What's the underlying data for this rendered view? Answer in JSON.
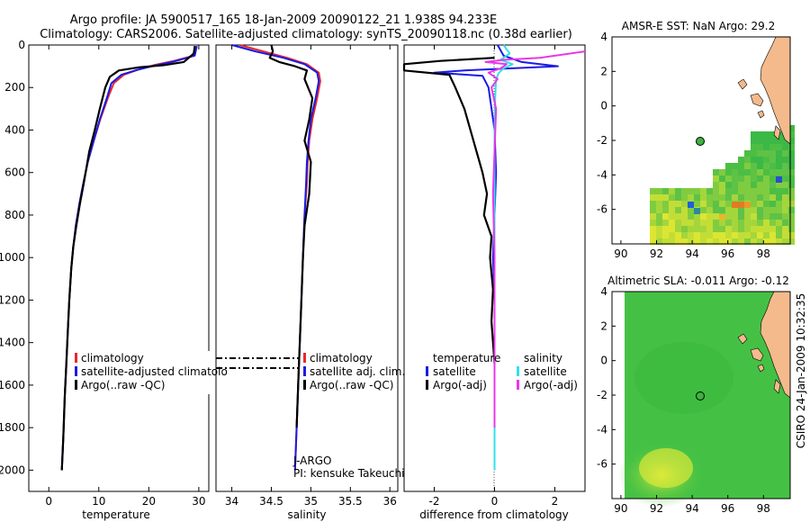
{
  "title_line1": "Argo profile: JA 5900517_165 18-Jan-2009 20090122_21 1.938S 94.233E",
  "title_line2": "Climatology: CARS2006. Satellite-adjusted climatology: synTS_20090118.nc (0.38d earlier)",
  "credit": "CSIRO 24-Jan-2009 10:32:35",
  "colors": {
    "red": "#e8292c",
    "blue": "#1a1ae6",
    "black": "#000000",
    "cyan": "#33e0e8",
    "magenta": "#e838e8",
    "land": "#f4ba8c",
    "ocean_map": "#44c144"
  },
  "chart_data": [
    {
      "type": "line",
      "xlabel": "temperature",
      "ylabel": "",
      "xlim": [
        -4,
        32
      ],
      "ylim": [
        2100,
        0
      ],
      "xticks": [
        "0",
        "10",
        "20",
        "30"
      ],
      "yticks": [
        "0",
        "200",
        "400",
        "600",
        "800",
        "1000",
        "1200",
        "1400",
        "1600",
        "1800",
        "2000"
      ],
      "legend": [
        "climatology",
        "satellite-adjusted climatolo",
        "Argo(..raw -QC)"
      ],
      "series": [
        {
          "name": "climatology",
          "color": "red",
          "x": [
            29.3,
            29.0,
            25,
            21,
            18,
            15,
            13,
            11.8,
            10.3,
            9.0,
            7.8,
            6.9,
            6.1,
            5.4,
            4.9,
            4.5,
            4.1,
            3.8,
            3.5,
            3.2,
            2.9,
            2.6
          ],
          "y": [
            5,
            50,
            75,
            95,
            115,
            140,
            180,
            250,
            350,
            450,
            550,
            650,
            750,
            850,
            950,
            1050,
            1200,
            1350,
            1500,
            1650,
            1850,
            2000
          ]
        },
        {
          "name": "satellite-adjusted climatology",
          "color": "blue",
          "x": [
            29.6,
            29.2,
            25,
            21,
            17.5,
            14.5,
            12.5,
            11.6,
            10.2,
            9.0,
            7.8,
            6.9,
            6.1,
            5.4,
            4.9,
            4.5,
            4.1,
            3.8,
            3.5,
            3.2,
            2.9,
            2.6
          ],
          "y": [
            5,
            50,
            78,
            98,
            118,
            140,
            180,
            250,
            350,
            450,
            550,
            650,
            750,
            850,
            950,
            1050,
            1200,
            1350,
            1500,
            1650,
            1850,
            2000
          ]
        },
        {
          "name": "Argo(..raw -QC)",
          "color": "black",
          "x": [
            29.2,
            29.0,
            27,
            23,
            18,
            14,
            12.2,
            11.3,
            10.2,
            9.2,
            8.1,
            7.0,
            6.2,
            5.5,
            4.9,
            4.5,
            4.1,
            3.8,
            3.5,
            3.2,
            2.9,
            2.6
          ],
          "y": [
            5,
            40,
            80,
            95,
            105,
            120,
            150,
            200,
            300,
            400,
            500,
            650,
            750,
            850,
            950,
            1050,
            1200,
            1350,
            1500,
            1650,
            1850,
            2000
          ]
        }
      ]
    },
    {
      "type": "line",
      "xlabel": "salinity",
      "ylabel": "",
      "xlim": [
        33.8,
        36.1
      ],
      "ylim": [
        2100,
        0
      ],
      "xticks": [
        "34",
        "34.5",
        "35",
        "35.5",
        "36"
      ],
      "legend": [
        "climatology",
        "satellite adj. clim.",
        "Argo(..raw -QC)"
      ],
      "annotations": [
        "J-ARGO",
        "PI: kensuke Takeuchi"
      ],
      "series": [
        {
          "name": "climatology",
          "color": "red",
          "x": [
            34.1,
            34.4,
            34.7,
            34.95,
            35.1,
            35.12,
            35.08,
            35.02,
            34.98,
            34.96,
            34.95,
            34.92,
            34.9,
            34.88,
            34.86,
            34.84,
            34.82,
            34.8
          ],
          "y": [
            0,
            30,
            60,
            90,
            130,
            170,
            250,
            350,
            450,
            550,
            650,
            800,
            1000,
            1200,
            1400,
            1600,
            1800,
            2000
          ]
        },
        {
          "name": "satellite adj. clim.",
          "color": "blue",
          "x": [
            34.0,
            34.3,
            34.65,
            34.92,
            35.08,
            35.1,
            35.06,
            35.0,
            34.97,
            34.95,
            34.94,
            34.92,
            34.9,
            34.88,
            34.86,
            34.84,
            34.82,
            34.8
          ],
          "y": [
            0,
            30,
            60,
            90,
            130,
            170,
            250,
            350,
            450,
            550,
            650,
            800,
            1000,
            1200,
            1400,
            1600,
            1800,
            2000
          ]
        },
        {
          "name": "Argo(..raw -QC)",
          "color": "black",
          "x": [
            34.5,
            34.52,
            34.48,
            34.6,
            34.8,
            34.95,
            34.92,
            35.02,
            34.98,
            34.92,
            35.0,
            34.98,
            34.92,
            34.9,
            34.88,
            34.86,
            34.84,
            34.82
          ],
          "y": [
            0,
            30,
            60,
            80,
            100,
            120,
            160,
            250,
            350,
            450,
            550,
            700,
            850,
            1000,
            1200,
            1400,
            1600,
            1800
          ]
        }
      ]
    },
    {
      "type": "line",
      "xlabel": "difference from climatology",
      "ylabel": "",
      "xlim": [
        -3,
        3
      ],
      "ylim": [
        2100,
        0
      ],
      "xticks": [
        "-2",
        "0",
        "2"
      ],
      "legend_left_title": "temperature",
      "legend_right_title": "salinity",
      "legend": [
        "satellite",
        "Argo(-adj)",
        "satellite",
        "Argo(-adj)"
      ],
      "series": [
        {
          "name": "temperature satellite",
          "color": "blue",
          "x": [
            0.1,
            0.3,
            0.9,
            2.1,
            0.5,
            -1.0,
            -2.0,
            -0.4,
            -0.2,
            0.0,
            0.05,
            0.0,
            -0.05,
            0.0,
            0.0,
            0.0,
            0.0
          ],
          "y": [
            0,
            50,
            80,
            100,
            110,
            120,
            130,
            145,
            200,
            400,
            600,
            800,
            1000,
            1200,
            1500,
            1800,
            2000
          ]
        },
        {
          "name": "temperature Argo(-adj)",
          "color": "black",
          "x": [
            0.0,
            -1.8,
            -3.0,
            -3.0,
            -1.5,
            -1.3,
            -1.0,
            -0.8,
            -0.6,
            -0.4,
            -0.25,
            -0.35,
            -0.1,
            -0.15,
            -0.05,
            -0.1,
            0.0
          ],
          "y": [
            60,
            75,
            90,
            120,
            140,
            200,
            300,
            400,
            500,
            600,
            700,
            800,
            900,
            1000,
            1150,
            1300,
            1500
          ]
        },
        {
          "name": "salinity satellite",
          "color": "cyan",
          "x": [
            0.3,
            0.5,
            0.2,
            0.6,
            0.3,
            0.15,
            0.05,
            0.02,
            0.0,
            0.0,
            0.0,
            0.0,
            0.0,
            0.0,
            0.0
          ],
          "y": [
            0,
            40,
            70,
            90,
            110,
            130,
            160,
            250,
            400,
            600,
            800,
            1000,
            1300,
            1700,
            2000
          ]
        },
        {
          "name": "salinity Argo(-adj)",
          "color": "magenta",
          "x": [
            3.0,
            1.5,
            0.3,
            -0.3,
            0.4,
            0.2,
            -0.2,
            0.1,
            -0.1,
            0.05,
            0.0,
            -0.05,
            0.0,
            0.0,
            0.0,
            0.0
          ],
          "y": [
            30,
            60,
            70,
            80,
            90,
            110,
            130,
            160,
            200,
            300,
            500,
            700,
            1000,
            1300,
            1600,
            1800
          ]
        }
      ]
    },
    {
      "type": "heatmap",
      "title": "AMSR-E SST: NaN Argo: 29.2",
      "xlim": [
        89.5,
        99.5
      ],
      "ylim": [
        -8,
        4
      ],
      "xticks": [
        "90",
        "92",
        "94",
        "96",
        "98"
      ],
      "yticks": [
        "4",
        "2",
        "0",
        "-2",
        "-4",
        "-6"
      ],
      "argo_position": {
        "lon": 94.233,
        "lat": -1.938
      }
    },
    {
      "type": "heatmap",
      "title": "Altimetric SLA: -0.011 Argo: -0.12",
      "xlim": [
        89.5,
        99.5
      ],
      "ylim": [
        -8,
        4
      ],
      "xticks": [
        "90",
        "92",
        "94",
        "96",
        "98"
      ],
      "yticks": [
        "4",
        "2",
        "0",
        "-2",
        "-4",
        "-6"
      ],
      "argo_position": {
        "lon": 94.233,
        "lat": -1.938
      }
    }
  ]
}
